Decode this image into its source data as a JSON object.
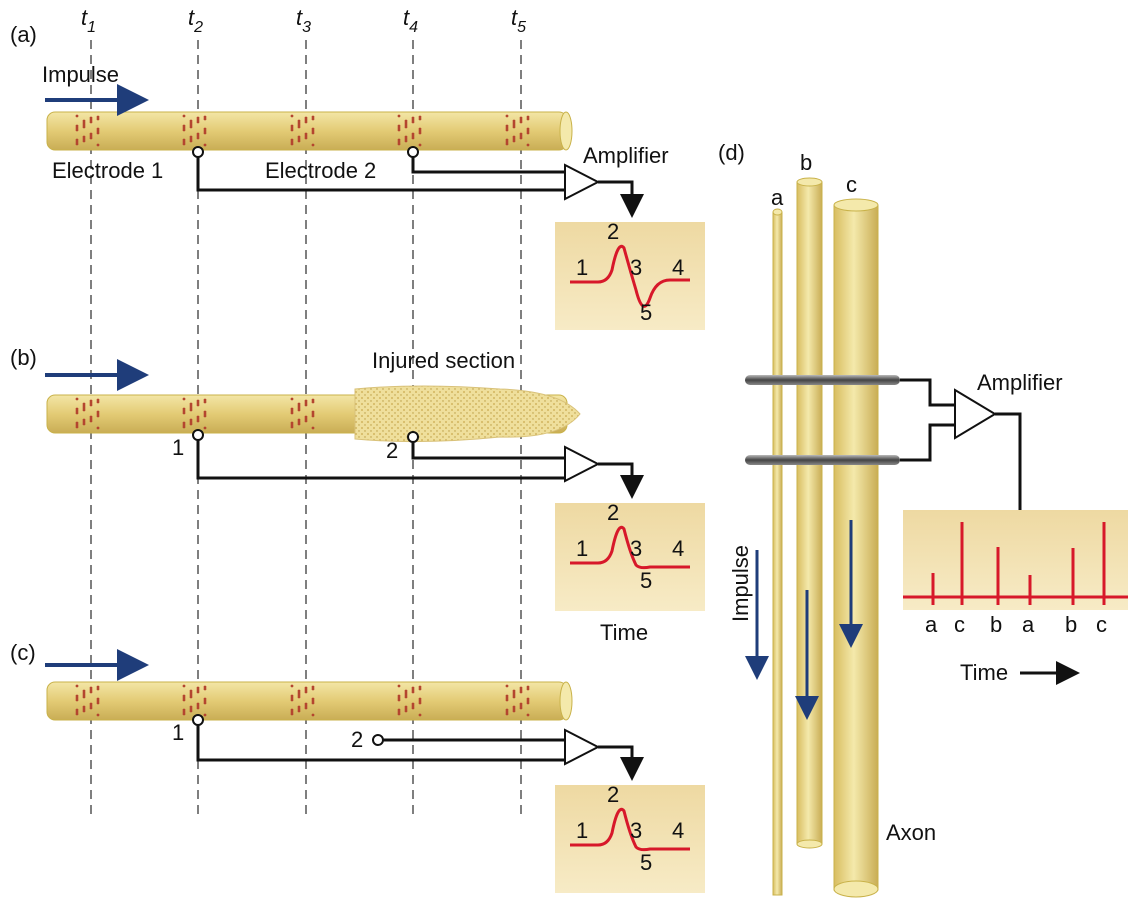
{
  "time_markers": [
    {
      "symbol": "t",
      "index": "1"
    },
    {
      "symbol": "t",
      "index": "2"
    },
    {
      "symbol": "t",
      "index": "3"
    },
    {
      "symbol": "t",
      "index": "4"
    },
    {
      "symbol": "t",
      "index": "5"
    }
  ],
  "panel_a": {
    "label": "(a)",
    "impulse": "Impulse",
    "electrode_1": "Electrode 1",
    "electrode_2": "Electrode 2",
    "amplifier": "Amplifier",
    "trace_labels": [
      "1",
      "2",
      "3",
      "4",
      "5"
    ]
  },
  "panel_b": {
    "label": "(b)",
    "injured": "Injured section",
    "electrode_1": "1",
    "electrode_2": "2",
    "trace_labels": [
      "1",
      "2",
      "3",
      "4",
      "5"
    ],
    "time": "Time"
  },
  "panel_c": {
    "label": "(c)",
    "electrode_1": "1",
    "electrode_2": "2",
    "trace_labels": [
      "1",
      "2",
      "3",
      "4",
      "5"
    ]
  },
  "panel_d": {
    "label": "(d)",
    "axons": [
      "a",
      "b",
      "c"
    ],
    "impulse": "Impulse",
    "amplifier": "Amplifier",
    "spike_labels": [
      "a",
      "c",
      "b",
      "a",
      "b",
      "c"
    ],
    "time": "Time",
    "axon": "Axon"
  }
}
